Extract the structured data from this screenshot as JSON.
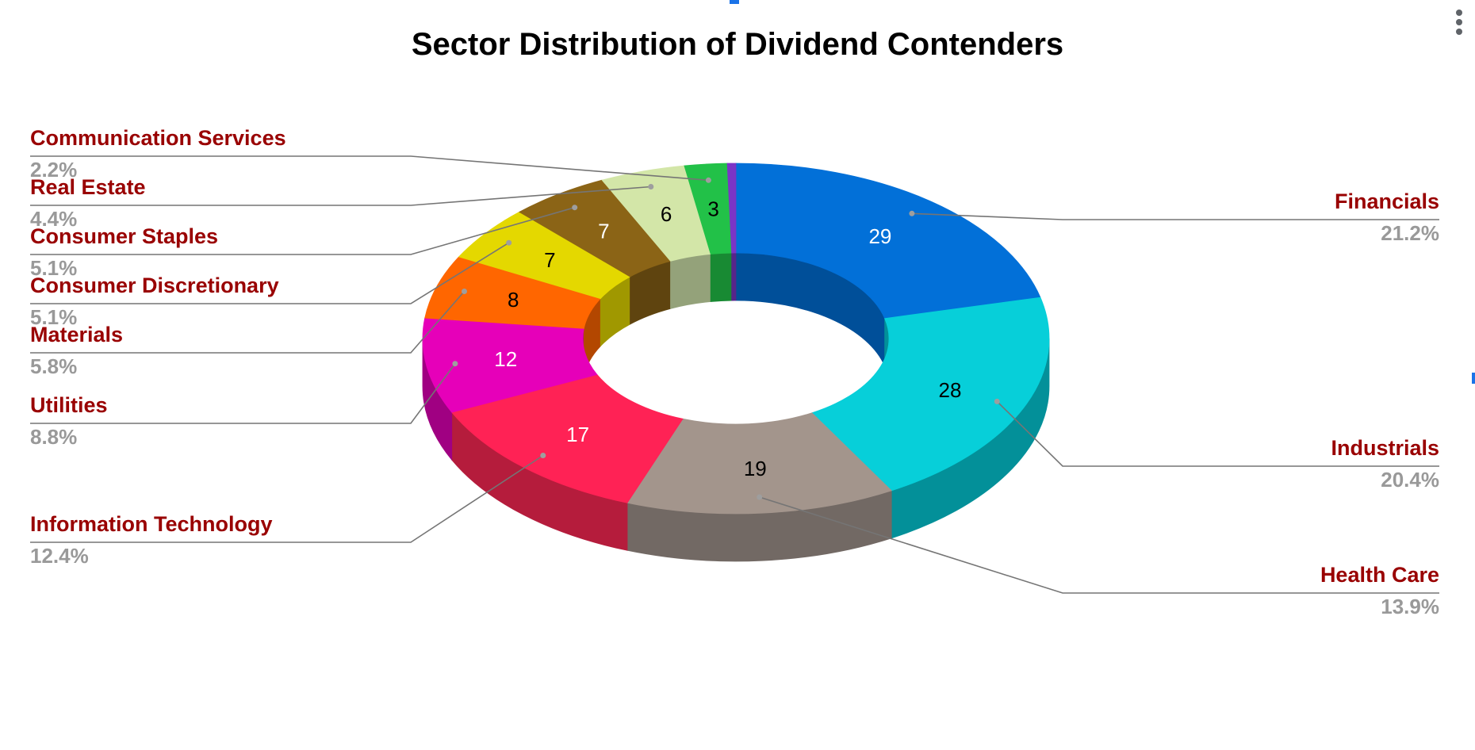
{
  "chart_data": {
    "type": "pie",
    "variant": "3d-donut",
    "title": "Sector Distribution of Dividend Contenders",
    "legend_placement": "labels-both-sides",
    "slices": [
      {
        "label": "Financials",
        "value": 29,
        "percent": "21.2%",
        "color": "#0270d8",
        "side_color": "#004f99",
        "value_color": "#ffffff",
        "side": "right"
      },
      {
        "label": "Industrials",
        "value": 28,
        "percent": "20.4%",
        "color": "#07cfd9",
        "side_color": "#039099",
        "value_color": "#000000",
        "side": "right"
      },
      {
        "label": "Health Care",
        "value": 19,
        "percent": "13.9%",
        "color": "#a3958c",
        "side_color": "#726964",
        "value_color": "#000000",
        "side": "right"
      },
      {
        "label": "Information Technology",
        "value": 17,
        "percent": "12.4%",
        "color": "#ff2255",
        "side_color": "#b51c3c",
        "value_color": "#ffffff",
        "side": "left"
      },
      {
        "label": "Utilities",
        "value": 12,
        "percent": "8.8%",
        "color": "#e600b9",
        "side_color": "#a00082",
        "value_color": "#ffffff",
        "side": "left"
      },
      {
        "label": "Materials",
        "value": 8,
        "percent": "5.8%",
        "color": "#ff6600",
        "side_color": "#b34700",
        "value_color": "#000000",
        "side": "left"
      },
      {
        "label": "Consumer Discretionary",
        "value": 7,
        "percent": "5.1%",
        "color": "#e4d800",
        "side_color": "#a09800",
        "value_color": "#000000",
        "side": "left"
      },
      {
        "label": "Consumer Staples",
        "value": 7,
        "percent": "5.1%",
        "color": "#8b6416",
        "side_color": "#5f440f",
        "value_color": "#ffffff",
        "side": "left"
      },
      {
        "label": "Real Estate",
        "value": 6,
        "percent": "4.4%",
        "color": "#d3e6a8",
        "side_color": "#94a27a",
        "value_color": "#000000",
        "side": "left"
      },
      {
        "label": "Communication Services",
        "value": 3,
        "percent": "2.2%",
        "color": "#22c148",
        "side_color": "#188a33",
        "value_color": "#000000",
        "side": "left"
      },
      {
        "label": "",
        "value": 0.6,
        "percent": "",
        "color": "#7b35c6",
        "side_color": "#56258a",
        "value_color": "#ffffff",
        "side": "none"
      }
    ],
    "colors": {
      "label_text": "#990000",
      "percent_text": "#999999",
      "leader_line": "#757575"
    }
  }
}
